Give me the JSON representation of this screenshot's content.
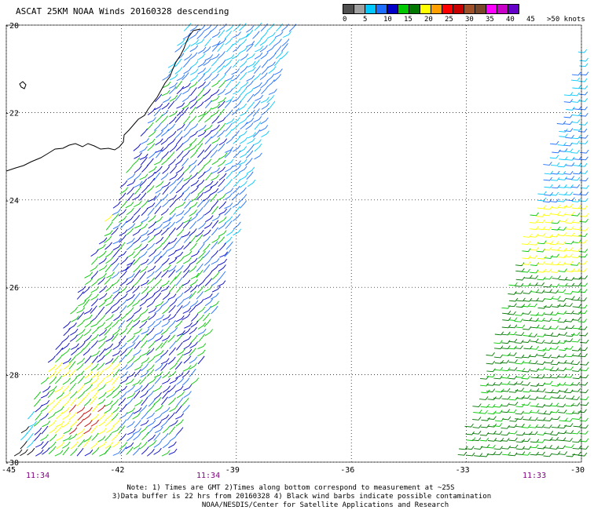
{
  "title": "ASCAT 25KM NOAA Winds 20160328 descending",
  "legend": {
    "colors": [
      "#505050",
      "#a0a0a0",
      "#00c8ff",
      "#1e6eff",
      "#0000c8",
      "#00c800",
      "#007800",
      "#ffff00",
      "#ffa000",
      "#ff0000",
      "#c80000",
      "#a05028",
      "#784628",
      "#ff00ff",
      "#c800c8",
      "#6400c8"
    ],
    "labels": [
      "0",
      "5",
      "10",
      "15",
      "20",
      "25",
      "30",
      "35",
      "40",
      "45",
      ">50 knots"
    ]
  },
  "axes": {
    "lat_labels": [
      "-20",
      "-22",
      "-24",
      "-26",
      "-28",
      "-30"
    ],
    "lon_labels": [
      "-45",
      "-42",
      "-39",
      "-36",
      "-33",
      "-30"
    ],
    "lat_range": [
      -30,
      -20
    ],
    "lon_range": [
      -45,
      -30
    ],
    "grid": "dotted"
  },
  "pass_times": [
    "11:34",
    "11:34",
    "11:33"
  ],
  "notes": [
    "Note: 1) Times are GMT 2)Times along bottom correspond to measurement at ~25S",
    "3)Data buffer is 22 hrs from 20160328 4) Black wind barbs indicate possible contamination",
    "NOAA/NESDIS/Center for Satellite Applications and Research"
  ],
  "colors": {
    "land": "#ffffff",
    "coast": "#000000",
    "time_label": "#800080"
  }
}
